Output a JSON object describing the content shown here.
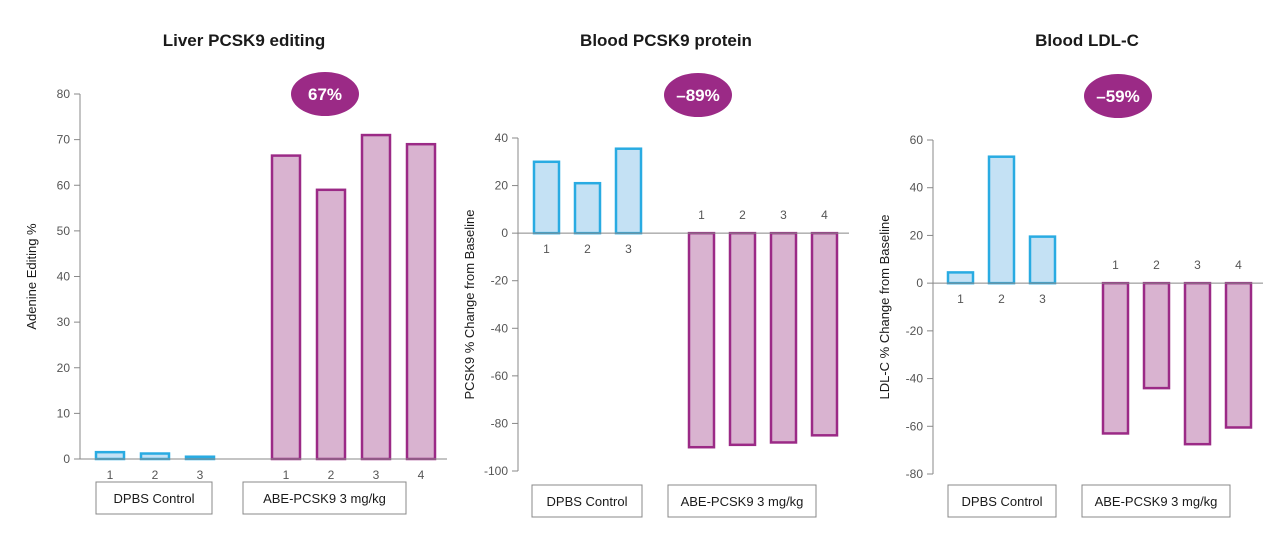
{
  "colors": {
    "control_fill": "#c4e1f4",
    "control_stroke": "#29abe2",
    "treated_fill": "#d9b3d0",
    "treated_stroke": "#9b2a86",
    "badge": "#9b2a86",
    "axis": "#888888"
  },
  "chart_data": [
    {
      "type": "bar",
      "title": "Liver PCSK9 editing",
      "ylabel": "Adenine Editing %",
      "ylim": [
        0,
        80
      ],
      "yticks": [
        0,
        10,
        20,
        30,
        40,
        50,
        60,
        70,
        80
      ],
      "ytick_labels": [
        "0",
        "10",
        "20",
        "30",
        "40",
        "50",
        "60",
        "70",
        "80"
      ],
      "badge": "67%",
      "grid": false,
      "series": [
        {
          "group_label": "DPBS Control",
          "categories": [
            "1",
            "2",
            "3"
          ],
          "values": [
            1.5,
            1.2,
            0.5
          ]
        },
        {
          "group_label": "ABE-PCSK9 3 mg/kg",
          "categories": [
            "1",
            "2",
            "3",
            "4"
          ],
          "values": [
            66.5,
            59,
            71,
            69
          ]
        }
      ]
    },
    {
      "type": "bar",
      "title": "Blood PCSK9 protein",
      "ylabel": "PCSK9 % Change from Baseline",
      "ylim": [
        -100,
        40
      ],
      "yticks": [
        40,
        20,
        0,
        -20,
        -40,
        -60,
        -80,
        -100
      ],
      "ytick_labels": [
        "40",
        "20",
        "0",
        "-20",
        "-40",
        "-60",
        "-80",
        "-100"
      ],
      "badge": "–89%",
      "grid": false,
      "series": [
        {
          "group_label": "DPBS Control",
          "categories": [
            "1",
            "2",
            "3"
          ],
          "values": [
            30,
            21,
            35.5
          ]
        },
        {
          "group_label": "ABE-PCSK9 3 mg/kg",
          "categories": [
            "1",
            "2",
            "3",
            "4"
          ],
          "values": [
            -90,
            -89,
            -88,
            -85
          ]
        }
      ]
    },
    {
      "type": "bar",
      "title": "Blood LDL-C",
      "ylabel": "LDL-C % Change from Baseline",
      "ylim": [
        -80,
        60
      ],
      "yticks": [
        60,
        40,
        20,
        0,
        -20,
        -40,
        -60,
        -80
      ],
      "ytick_labels": [
        "60",
        "40",
        "20",
        "0",
        "-20",
        "-40",
        "-60",
        "-80"
      ],
      "badge": "–59%",
      "grid": false,
      "series": [
        {
          "group_label": "DPBS Control",
          "categories": [
            "1",
            "2",
            "3"
          ],
          "values": [
            4.5,
            53,
            19.5
          ]
        },
        {
          "group_label": "ABE-PCSK9 3 mg/kg",
          "categories": [
            "1",
            "2",
            "3",
            "4"
          ],
          "values": [
            -63,
            -44,
            -67.5,
            -60.5
          ]
        }
      ]
    }
  ]
}
